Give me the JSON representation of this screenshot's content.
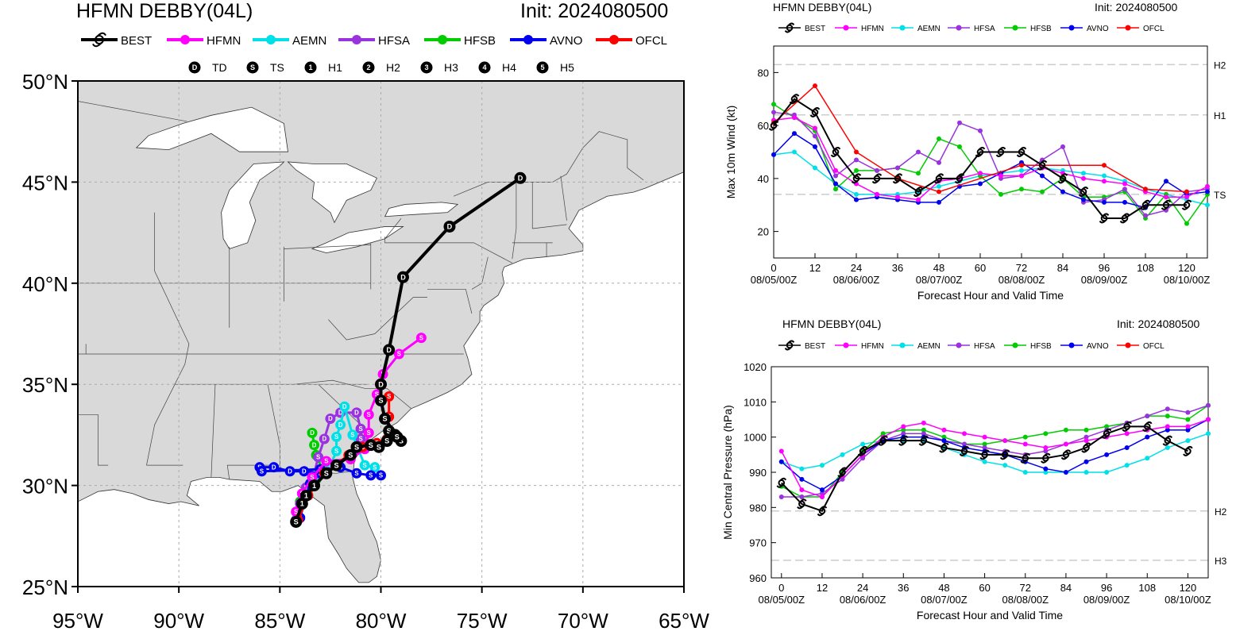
{
  "colors": {
    "BEST": "#000000",
    "HFMN": "#ff00ff",
    "AEMN": "#00e0e8",
    "HFSA": "#9933dd",
    "HFSB": "#00cc00",
    "AVNO": "#0000ee",
    "OFCL": "#ff0000",
    "land": "#d9d9d9",
    "grid": "#aaaaaa"
  },
  "track_map": {
    "title": "HFMN DEBBY(04L)",
    "init": "Init: 2024080500",
    "legend_models": [
      "BEST",
      "HFMN",
      "AEMN",
      "HFSA",
      "HFSB",
      "AVNO",
      "OFCL"
    ],
    "legend_intensity": [
      {
        "glyph": "D",
        "label": "TD"
      },
      {
        "glyph": "S",
        "label": "TS"
      },
      {
        "glyph": "1",
        "label": "H1"
      },
      {
        "glyph": "2",
        "label": "H2"
      },
      {
        "glyph": "3",
        "label": "H3"
      },
      {
        "glyph": "4",
        "label": "H4"
      },
      {
        "glyph": "5",
        "label": "H5"
      }
    ],
    "lat_labels": [
      "25°N",
      "30°N",
      "35°N",
      "40°N",
      "45°N",
      "50°N"
    ],
    "lon_labels": [
      "95°W",
      "90°W",
      "85°W",
      "80°W",
      "75°W",
      "70°W",
      "65°W"
    ]
  },
  "chart_data": [
    {
      "type": "line",
      "title": "HFMN DEBBY(04L)",
      "init": "Init: 2024080500",
      "xlabel": "Forecast Hour and Valid Time",
      "ylabel": "Max 10m Wind (kt)",
      "x_ticks": [
        0,
        12,
        24,
        36,
        48,
        60,
        72,
        84,
        96,
        108,
        120
      ],
      "valid_labels": [
        {
          "hour": 0,
          "label": "08/05/00Z"
        },
        {
          "hour": 24,
          "label": "08/06/00Z"
        },
        {
          "hour": 48,
          "label": "08/07/00Z"
        },
        {
          "hour": 72,
          "label": "08/08/00Z"
        },
        {
          "hour": 96,
          "label": "08/09/00Z"
        },
        {
          "hour": 120,
          "label": "08/10/00Z"
        }
      ],
      "xlim": [
        0,
        126
      ],
      "ylim": [
        10,
        90
      ],
      "y_ticks": [
        20,
        40,
        60,
        80
      ],
      "thresholds": [
        {
          "label": "TS",
          "value": 34
        },
        {
          "label": "H1",
          "value": 64
        },
        {
          "label": "H2",
          "value": 83
        }
      ],
      "series": [
        {
          "name": "BEST",
          "x": [
            0,
            6,
            12,
            18,
            24,
            30,
            36,
            42,
            48,
            54,
            60,
            66,
            72,
            78,
            84,
            90,
            96,
            102,
            108,
            114,
            120
          ],
          "values": [
            60,
            70,
            65,
            50,
            40,
            40,
            40,
            35,
            40,
            40,
            50,
            50,
            50,
            45,
            40,
            35,
            25,
            25,
            30,
            30,
            30
          ]
        },
        {
          "name": "HFMN",
          "x": [
            0,
            6,
            12,
            18,
            24,
            30,
            36,
            42,
            48,
            54,
            60,
            66,
            72,
            78,
            84,
            90,
            96,
            102,
            108,
            114,
            120,
            126
          ],
          "values": [
            62,
            63,
            59,
            43,
            38,
            34,
            33,
            32,
            39,
            40,
            42,
            41,
            41,
            44,
            42,
            40,
            39,
            38,
            35,
            33,
            33,
            37
          ]
        },
        {
          "name": "AEMN",
          "x": [
            0,
            6,
            12,
            18,
            24,
            30,
            36,
            42,
            48,
            54,
            60,
            66,
            72,
            78,
            84,
            90,
            96,
            102,
            108,
            114,
            120,
            126
          ],
          "values": [
            49,
            50,
            44,
            38,
            34,
            34,
            34,
            35,
            37,
            39,
            41,
            42,
            43,
            44,
            43,
            42,
            41,
            39,
            36,
            34,
            32,
            30
          ]
        },
        {
          "name": "HFSA",
          "x": [
            0,
            6,
            12,
            18,
            24,
            30,
            36,
            42,
            48,
            54,
            60,
            66,
            72,
            78,
            84,
            90,
            96,
            102,
            108,
            114,
            120,
            126
          ],
          "values": [
            65,
            64,
            56,
            41,
            47,
            43,
            44,
            50,
            46,
            61,
            58,
            40,
            41,
            47,
            52,
            31,
            32,
            36,
            26,
            28,
            35,
            36
          ]
        },
        {
          "name": "HFSB",
          "x": [
            0,
            6,
            12,
            18,
            24,
            30,
            36,
            42,
            48,
            54,
            60,
            66,
            72,
            78,
            84,
            90,
            96,
            102,
            108,
            114,
            120,
            126
          ],
          "values": [
            68,
            63,
            58,
            36,
            43,
            43,
            44,
            42,
            55,
            52,
            41,
            34,
            36,
            35,
            40,
            33,
            33,
            35,
            25,
            34,
            23,
            34
          ]
        },
        {
          "name": "AVNO",
          "x": [
            0,
            6,
            12,
            18,
            24,
            30,
            36,
            42,
            48,
            54,
            60,
            66,
            72,
            78,
            84,
            90,
            96,
            102,
            108,
            114,
            120,
            126
          ],
          "values": [
            49,
            57,
            52,
            38,
            32,
            33,
            32,
            31,
            31,
            37,
            38,
            42,
            46,
            41,
            35,
            32,
            31,
            31,
            29,
            39,
            34,
            35
          ]
        },
        {
          "name": "OFCL",
          "x": [
            0,
            12,
            24,
            36,
            48,
            72,
            96,
            108,
            120
          ],
          "values": [
            61,
            75,
            50,
            40,
            35,
            45,
            45,
            36,
            35
          ]
        }
      ]
    },
    {
      "type": "line",
      "title": "HFMN DEBBY(04L)",
      "init": "Init: 2024080500",
      "xlabel": "Forecast Hour and Valid Time",
      "ylabel": "Min Central Pressure (hPa)",
      "x_ticks": [
        0,
        12,
        24,
        36,
        48,
        60,
        72,
        84,
        96,
        108,
        120
      ],
      "valid_labels": [
        {
          "hour": 0,
          "label": "08/05/00Z"
        },
        {
          "hour": 24,
          "label": "08/06/00Z"
        },
        {
          "hour": 48,
          "label": "08/07/00Z"
        },
        {
          "hour": 72,
          "label": "08/08/00Z"
        },
        {
          "hour": 96,
          "label": "08/09/00Z"
        },
        {
          "hour": 120,
          "label": "08/10/00Z"
        }
      ],
      "xlim": [
        -3,
        126
      ],
      "ylim": [
        960,
        1020
      ],
      "y_ticks": [
        960,
        970,
        980,
        990,
        1000,
        1010,
        1020
      ],
      "thresholds": [
        {
          "label": "H2",
          "value": 979
        },
        {
          "label": "H3",
          "value": 965
        }
      ],
      "series": [
        {
          "name": "BEST",
          "x": [
            0,
            6,
            12,
            18,
            24,
            30,
            36,
            42,
            48,
            54,
            60,
            66,
            72,
            78,
            84,
            90,
            96,
            102,
            108,
            114,
            120
          ],
          "values": [
            987,
            981,
            979,
            990,
            996,
            999,
            999,
            999,
            997,
            996,
            995,
            995,
            994,
            994,
            995,
            997,
            1001,
            1003,
            1003,
            999,
            996
          ]
        },
        {
          "name": "HFMN",
          "x": [
            0,
            6,
            12,
            18,
            24,
            30,
            36,
            42,
            48,
            54,
            60,
            66,
            72,
            78,
            84,
            90,
            96,
            102,
            108,
            114,
            120,
            126
          ],
          "values": [
            996,
            985,
            983,
            989,
            995,
            1000,
            1003,
            1004,
            1002,
            1001,
            1000,
            999,
            998,
            997,
            998,
            999,
            1000,
            1001,
            1002,
            1003,
            1003,
            1005
          ]
        },
        {
          "name": "AEMN",
          "x": [
            0,
            6,
            12,
            18,
            24,
            30,
            36,
            42,
            48,
            54,
            60,
            66,
            72,
            78,
            84,
            90,
            96,
            102,
            108,
            114,
            120,
            126
          ],
          "values": [
            993,
            991,
            992,
            995,
            998,
            999,
            999,
            999,
            997,
            995,
            993,
            992,
            990,
            990,
            990,
            990,
            990,
            992,
            994,
            997,
            999,
            1001
          ]
        },
        {
          "name": "HFSA",
          "x": [
            0,
            6,
            12,
            18,
            24,
            30,
            36,
            42,
            48,
            54,
            60,
            66,
            72,
            78,
            84,
            90,
            96,
            102,
            108,
            114,
            120,
            126
          ],
          "values": [
            983,
            983,
            984,
            988,
            994,
            999,
            1001,
            1001,
            999,
            998,
            997,
            996,
            995,
            996,
            998,
            1000,
            1002,
            1004,
            1006,
            1008,
            1007,
            1009
          ]
        },
        {
          "name": "HFSB",
          "x": [
            0,
            6,
            12,
            18,
            24,
            30,
            36,
            42,
            48,
            54,
            60,
            66,
            72,
            78,
            84,
            90,
            96,
            102,
            108,
            114,
            120,
            126
          ],
          "values": [
            986,
            983,
            983,
            990,
            996,
            1001,
            1002,
            1002,
            1000,
            998,
            998,
            999,
            1000,
            1001,
            1002,
            1002,
            1003,
            1004,
            1006,
            1006,
            1005,
            1009
          ]
        },
        {
          "name": "AVNO",
          "x": [
            0,
            6,
            12,
            18,
            24,
            30,
            36,
            42,
            48,
            54,
            60,
            66,
            72,
            78,
            84,
            90,
            96,
            102,
            108,
            114,
            120,
            126
          ],
          "values": [
            993,
            988,
            985,
            989,
            995,
            999,
            1000,
            1000,
            999,
            997,
            996,
            995,
            993,
            991,
            990,
            993,
            995,
            997,
            1000,
            1002,
            1002,
            1005
          ]
        }
      ]
    }
  ]
}
